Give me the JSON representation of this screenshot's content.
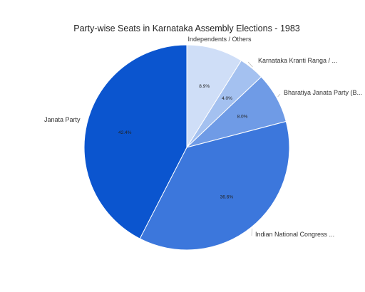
{
  "chart_data": {
    "type": "pie",
    "title": "Party-wise Seats in Karnataka Assembly Elections - 1983",
    "slices": [
      {
        "label": "Independents / Others",
        "value": 8.9,
        "pct_label": "8.9%",
        "color": "#cfdef7"
      },
      {
        "label": "Karnataka Kranti Ranga / ...",
        "value": 4.0,
        "pct_label": "4.0%",
        "color": "#a4c1f0"
      },
      {
        "label": "Bharatiya Janata Party (B...",
        "value": 8.0,
        "pct_label": "8.0%",
        "color": "#6f9be6"
      },
      {
        "label": "Indian National Congress ...",
        "value": 36.6,
        "pct_label": "36.6%",
        "color": "#3c77dc"
      },
      {
        "label": "Janata Party",
        "value": 42.4,
        "pct_label": "42.4%",
        "color": "#0b55cf"
      }
    ],
    "start_angle": "12 o'clock",
    "direction": "clockwise",
    "legend": "none"
  }
}
